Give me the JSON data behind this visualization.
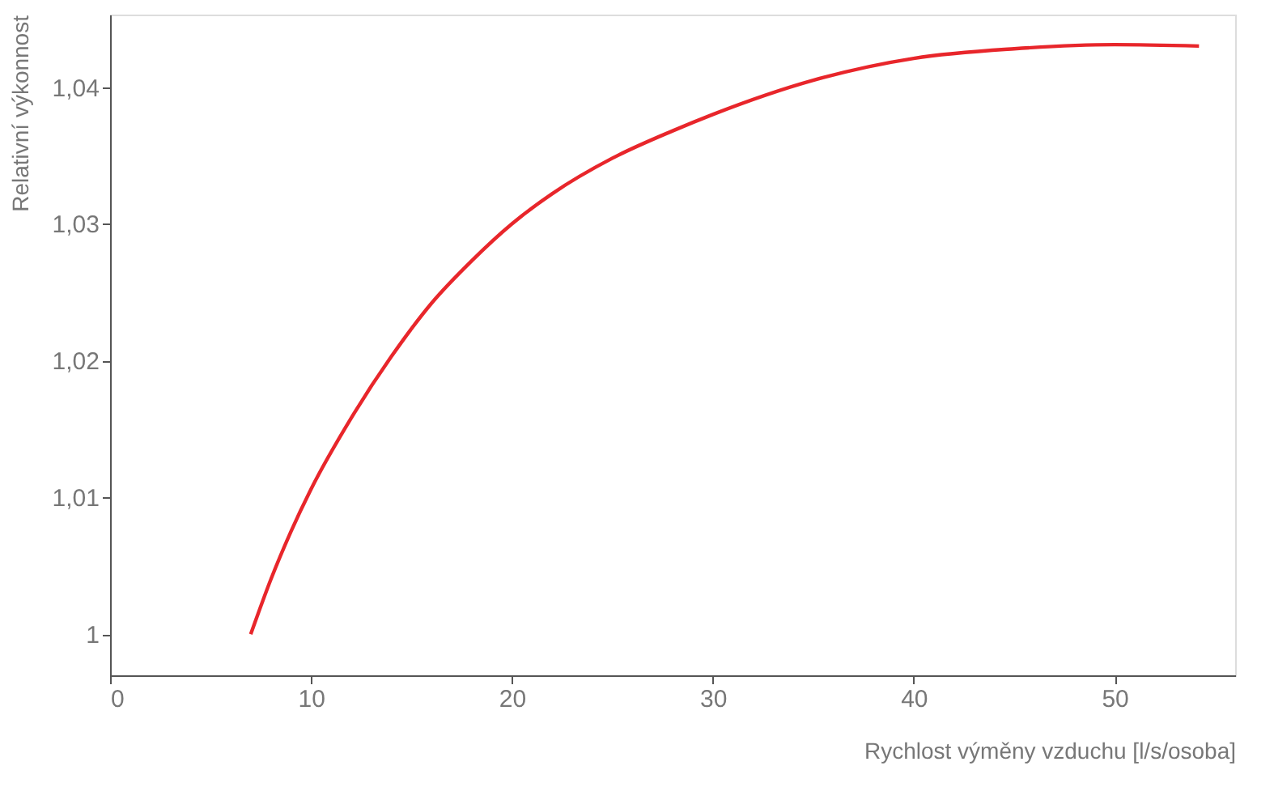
{
  "chart_data": {
    "type": "line",
    "xlabel": "Rychlost výměny vzduchu [l/s/osoba]",
    "ylabel": "Relativní výkonnost",
    "x": [
      7,
      8,
      9,
      10,
      12,
      14,
      16,
      18,
      20,
      22,
      25,
      28,
      30,
      35,
      40,
      45,
      50,
      54.2
    ],
    "series": [
      {
        "color": "#e8262b",
        "values": [
          1.0,
          1.004,
          1.0075,
          1.0106,
          1.0158,
          1.0203,
          1.0242,
          1.0273,
          1.03,
          1.0322,
          1.0348,
          1.0368,
          1.038,
          1.0405,
          1.0421,
          1.0428,
          1.0431,
          1.043
        ]
      }
    ],
    "xlim": [
      0,
      56
    ],
    "xticks": [
      0,
      10,
      20,
      30,
      40,
      50
    ],
    "ylim": [
      0.997,
      1.0453
    ],
    "yticks": [
      {
        "value": 1,
        "label": "1"
      },
      {
        "value": 1.01,
        "label": "1,01"
      },
      {
        "value": 1.02,
        "label": "1,02"
      },
      {
        "value": 1.03,
        "label": "1,03"
      },
      {
        "value": 1.04,
        "label": "1,04"
      }
    ],
    "grid": false
  }
}
